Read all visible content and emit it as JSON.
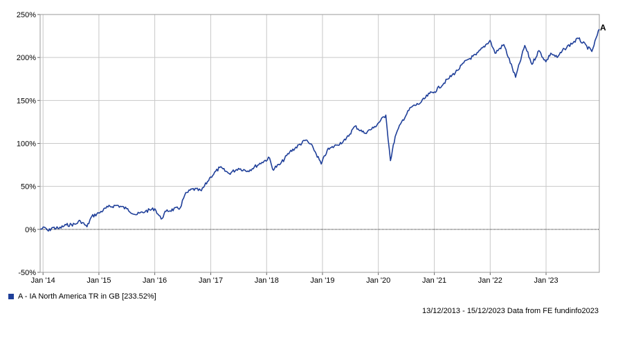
{
  "chart_data": {
    "type": "line",
    "y_ticks": [
      "250%",
      "200%",
      "150%",
      "100%",
      "50%",
      "0%",
      "-50%"
    ],
    "y_values": [
      250,
      200,
      150,
      100,
      50,
      0,
      -50
    ],
    "ylim": [
      -50,
      250
    ],
    "x_ticks": [
      "Jan '14",
      "Jan '15",
      "Jan '16",
      "Jan '17",
      "Jan '18",
      "Jan '19",
      "Jan '20",
      "Jan '21",
      "Jan '22",
      "Jan '23"
    ],
    "xlim": [
      "2013-12-13",
      "2023-12-15"
    ],
    "grid": true,
    "series": [
      {
        "name": "A - IA North America TR in GB [233.52%]",
        "marker": "A",
        "color": "#1f3f99",
        "points": [
          [
            "2013-12-13",
            0
          ],
          [
            "2014-01-15",
            2
          ],
          [
            "2014-02-05",
            -2
          ],
          [
            "2014-03-01",
            2
          ],
          [
            "2014-04-15",
            1
          ],
          [
            "2014-06-01",
            5
          ],
          [
            "2014-08-01",
            6
          ],
          [
            "2014-09-01",
            10
          ],
          [
            "2014-10-15",
            3
          ],
          [
            "2014-11-15",
            15
          ],
          [
            "2015-01-01",
            19
          ],
          [
            "2015-03-01",
            26
          ],
          [
            "2015-05-01",
            28
          ],
          [
            "2015-07-01",
            24
          ],
          [
            "2015-09-01",
            17
          ],
          [
            "2015-11-01",
            21
          ],
          [
            "2016-01-01",
            24
          ],
          [
            "2016-02-12",
            12
          ],
          [
            "2016-03-15",
            21
          ],
          [
            "2016-06-15",
            25
          ],
          [
            "2016-07-15",
            40
          ],
          [
            "2016-09-01",
            47
          ],
          [
            "2016-11-01",
            45
          ],
          [
            "2016-12-31",
            61
          ],
          [
            "2017-03-01",
            72
          ],
          [
            "2017-05-01",
            65
          ],
          [
            "2017-07-01",
            71
          ],
          [
            "2017-09-01",
            68
          ],
          [
            "2017-12-01",
            78
          ],
          [
            "2018-01-20",
            83
          ],
          [
            "2018-02-09",
            70
          ],
          [
            "2018-04-01",
            76
          ],
          [
            "2018-06-01",
            90
          ],
          [
            "2018-09-15",
            104
          ],
          [
            "2018-11-01",
            95
          ],
          [
            "2018-12-24",
            76
          ],
          [
            "2019-02-01",
            92
          ],
          [
            "2019-04-01",
            98
          ],
          [
            "2019-06-01",
            104
          ],
          [
            "2019-08-01",
            120
          ],
          [
            "2019-10-01",
            112
          ],
          [
            "2019-12-01",
            118
          ],
          [
            "2020-02-19",
            133
          ],
          [
            "2020-03-20",
            80
          ],
          [
            "2020-04-20",
            108
          ],
          [
            "2020-06-01",
            125
          ],
          [
            "2020-08-01",
            142
          ],
          [
            "2020-10-01",
            147
          ],
          [
            "2020-12-01",
            158
          ],
          [
            "2021-01-01",
            160
          ],
          [
            "2021-04-01",
            175
          ],
          [
            "2021-06-01",
            185
          ],
          [
            "2021-08-01",
            197
          ],
          [
            "2021-10-01",
            203
          ],
          [
            "2021-12-31",
            220
          ],
          [
            "2022-02-01",
            205
          ],
          [
            "2022-03-31",
            215
          ],
          [
            "2022-06-16",
            177
          ],
          [
            "2022-08-15",
            214
          ],
          [
            "2022-10-01",
            192
          ],
          [
            "2022-11-15",
            208
          ],
          [
            "2022-12-31",
            195
          ],
          [
            "2023-02-01",
            205
          ],
          [
            "2023-03-15",
            200
          ],
          [
            "2023-05-01",
            210
          ],
          [
            "2023-07-31",
            222
          ],
          [
            "2023-10-27",
            207
          ],
          [
            "2023-12-15",
            233
          ]
        ]
      }
    ]
  },
  "legend": {
    "label": "A - IA North America TR in GB [233.52%]",
    "color": "#1f3f99"
  },
  "footer": {
    "text": "13/12/2013 - 15/12/2023 Data from FE fundinfo2023"
  }
}
